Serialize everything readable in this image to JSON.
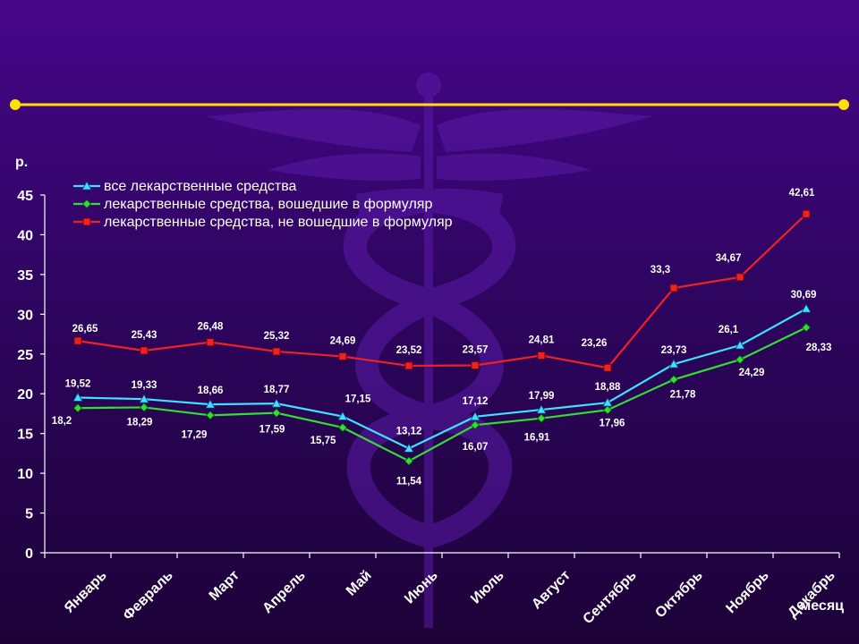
{
  "colors": {
    "background_top": "#46068a",
    "background_bottom": "#1d0238",
    "divider": "#ffe000",
    "axis_text": "#ffffff",
    "watermark": "#5a1aa8"
  },
  "chart_data": {
    "type": "line",
    "title": "",
    "ylabel": "р.",
    "xlabel": "месяц",
    "ylim": [
      0,
      45
    ],
    "yticks": [
      0,
      5,
      10,
      15,
      20,
      25,
      30,
      35,
      40,
      45
    ],
    "grid": false,
    "legend_position": "top-left",
    "categories": [
      "Январь",
      "Февраль",
      "Март",
      "Апрель",
      "Май",
      "Июнь",
      "Июль",
      "Август",
      "Сентябрь",
      "Октябрь",
      "Ноябрь",
      "Декабрь"
    ],
    "series": [
      {
        "name": "все лекарственные средства",
        "color": "#40e0ff",
        "marker": "triangle",
        "values": [
          19.52,
          19.33,
          18.66,
          18.77,
          17.15,
          13.12,
          17.12,
          17.99,
          18.88,
          23.73,
          26.1,
          30.69
        ],
        "labels": [
          "19,52",
          "19,33",
          "18,66",
          "18,77",
          "17,15",
          "13,12",
          "17,12",
          "17,99",
          "18,88",
          "23,73",
          "26,1",
          "30,69"
        ]
      },
      {
        "name": "лекарственные средства, вошедшие в формуляр",
        "color": "#33dd33",
        "marker": "diamond",
        "values": [
          18.2,
          18.29,
          17.29,
          17.59,
          15.75,
          11.54,
          16.07,
          16.91,
          17.96,
          21.78,
          24.29,
          28.33
        ],
        "labels": [
          "18,2",
          "18,29",
          "17,29",
          "17,59",
          "15,75",
          "11,54",
          "16,07",
          "16,91",
          "17,96",
          "21,78",
          "24,29",
          "28,33"
        ]
      },
      {
        "name": "лекарственные средства, не вошедшие в формуляр",
        "color": "#ee2222",
        "marker": "square",
        "values": [
          26.65,
          25.43,
          26.48,
          25.32,
          24.69,
          23.52,
          23.57,
          24.81,
          23.26,
          33.3,
          34.67,
          42.61
        ],
        "labels": [
          "26,65",
          "25,43",
          "26,48",
          "25,32",
          "24,69",
          "23,52",
          "23,57",
          "24,81",
          "23,26",
          "33,3",
          "34,67",
          "42,61"
        ]
      }
    ]
  }
}
